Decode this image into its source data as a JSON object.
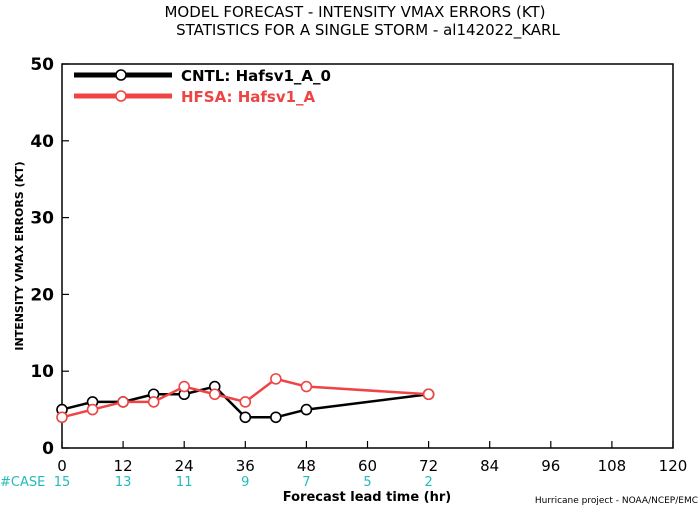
{
  "chart_data": {
    "type": "line",
    "title": "MODEL FORECAST - INTENSITY VMAX ERRORS (KT)",
    "subtitle": "STATISTICS FOR A SINGLE STORM - al142022_KARL",
    "xlabel": "Forecast lead time (hr)",
    "ylabel": "INTENSITY VMAX ERRORS (KT)",
    "xlim": [
      0,
      120
    ],
    "ylim": [
      0,
      50
    ],
    "xticks": [
      0,
      12,
      24,
      36,
      48,
      60,
      72,
      84,
      96,
      108,
      120
    ],
    "yticks": [
      0,
      10,
      20,
      30,
      40,
      50
    ],
    "legend_position": "top-left",
    "grid": false,
    "series": [
      {
        "name": "CNTL: Hafsv1_A_0",
        "color": "#000000",
        "x": [
          0,
          6,
          12,
          18,
          24,
          30,
          36,
          42,
          48,
          72
        ],
        "y": [
          5,
          6,
          6,
          7,
          7,
          8,
          4,
          4,
          5,
          7
        ]
      },
      {
        "name": "HFSA: Hafsv1_A",
        "color": "#ee4444",
        "x": [
          0,
          6,
          12,
          18,
          24,
          30,
          36,
          42,
          48,
          72
        ],
        "y": [
          4,
          5,
          6,
          6,
          8,
          7,
          6,
          9,
          8,
          7
        ]
      }
    ],
    "case_label": "#CASE",
    "case_color": "#22bbbb",
    "cases": [
      {
        "x": 0,
        "count": "15"
      },
      {
        "x": 12,
        "count": "13"
      },
      {
        "x": 24,
        "count": "11"
      },
      {
        "x": 36,
        "count": "9"
      },
      {
        "x": 48,
        "count": "7"
      },
      {
        "x": 60,
        "count": "5"
      },
      {
        "x": 72,
        "count": "2"
      }
    ],
    "credit": "Hurricane project - NOAA/NCEP/EMC"
  }
}
